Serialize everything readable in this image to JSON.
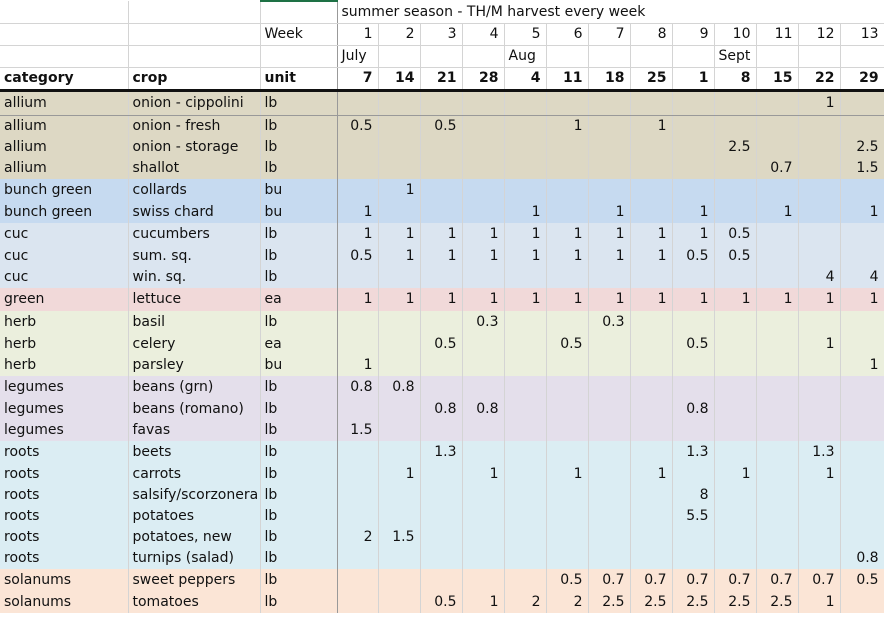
{
  "sheet": {
    "title": "summer season - TH/M harvest every week",
    "week_label": "Week",
    "weeks": [
      "1",
      "2",
      "3",
      "4",
      "5",
      "6",
      "7",
      "8",
      "9",
      "10",
      "11",
      "12",
      "13"
    ],
    "months": [
      "July",
      "",
      "",
      "",
      "Aug",
      "",
      "",
      "",
      "",
      "Sept",
      "",
      "",
      ""
    ],
    "days": [
      "7",
      "14",
      "21",
      "28",
      "4",
      "11",
      "18",
      "25",
      "1",
      "8",
      "15",
      "22",
      "29"
    ],
    "headers": {
      "category": "category",
      "crop": "crop",
      "unit": "unit"
    }
  },
  "group_colors": {
    "allium": "#ddd8c4",
    "bunch green": "#c6daf0",
    "cuc": "#dbe5f0",
    "green": "#f1d9d9",
    "herb": "#ebefdd",
    "legumes": "#e4dfeb",
    "roots": "#dbedf3",
    "solanums": "#fbe5d6"
  },
  "rows": [
    {
      "category": "allium",
      "crop": "onion - cippolini",
      "unit": "lb",
      "values": [
        "",
        "",
        "",
        "",
        "",
        "",
        "",
        "",
        "",
        "",
        "",
        "1",
        ""
      ]
    },
    {
      "category": "allium",
      "crop": "onion - fresh",
      "unit": "lb",
      "values": [
        "0.5",
        "",
        "0.5",
        "",
        "",
        "1",
        "",
        "1",
        "",
        "",
        "",
        "",
        ""
      ]
    },
    {
      "category": "allium",
      "crop": "onion - storage",
      "unit": "lb",
      "values": [
        "",
        "",
        "",
        "",
        "",
        "",
        "",
        "",
        "",
        "2.5",
        "",
        "",
        "2.5"
      ]
    },
    {
      "category": "allium",
      "crop": "shallot",
      "unit": "lb",
      "values": [
        "",
        "",
        "",
        "",
        "",
        "",
        "",
        "",
        "",
        "",
        "0.7",
        "",
        "1.5"
      ]
    },
    {
      "category": "bunch green",
      "crop": "collards",
      "unit": "bu",
      "values": [
        "",
        "1",
        "",
        "",
        "",
        "",
        "",
        "",
        "",
        "",
        "",
        "",
        ""
      ]
    },
    {
      "category": "bunch green",
      "crop": "swiss chard",
      "unit": "bu",
      "values": [
        "1",
        "",
        "",
        "",
        "1",
        "",
        "1",
        "",
        "1",
        "",
        "1",
        "",
        "1"
      ]
    },
    {
      "category": "cuc",
      "crop": "cucumbers",
      "unit": "lb",
      "values": [
        "1",
        "1",
        "1",
        "1",
        "1",
        "1",
        "1",
        "1",
        "1",
        "0.5",
        "",
        "",
        ""
      ]
    },
    {
      "category": "cuc",
      "crop": "sum. sq.",
      "unit": "lb",
      "values": [
        "0.5",
        "1",
        "1",
        "1",
        "1",
        "1",
        "1",
        "1",
        "0.5",
        "0.5",
        "",
        "",
        ""
      ]
    },
    {
      "category": "cuc",
      "crop": "win. sq.",
      "unit": "lb",
      "values": [
        "",
        "",
        "",
        "",
        "",
        "",
        "",
        "",
        "",
        "",
        "",
        "4",
        "4"
      ]
    },
    {
      "category": "green",
      "crop": "lettuce",
      "unit": "ea",
      "values": [
        "1",
        "1",
        "1",
        "1",
        "1",
        "1",
        "1",
        "1",
        "1",
        "1",
        "1",
        "1",
        "1"
      ]
    },
    {
      "category": "herb",
      "crop": "basil",
      "unit": "lb",
      "values": [
        "",
        "",
        "",
        "0.3",
        "",
        "",
        "0.3",
        "",
        "",
        "",
        "",
        "",
        ""
      ]
    },
    {
      "category": "herb",
      "crop": "celery",
      "unit": "ea",
      "values": [
        "",
        "",
        "0.5",
        "",
        "",
        "0.5",
        "",
        "",
        "0.5",
        "",
        "",
        "1",
        ""
      ]
    },
    {
      "category": "herb",
      "crop": "parsley",
      "unit": "bu",
      "values": [
        "1",
        "",
        "",
        "",
        "",
        "",
        "",
        "",
        "",
        "",
        "",
        "",
        "1"
      ]
    },
    {
      "category": "legumes",
      "crop": "beans (grn)",
      "unit": "lb",
      "values": [
        "0.8",
        "0.8",
        "",
        "",
        "",
        "",
        "",
        "",
        "",
        "",
        "",
        "",
        ""
      ]
    },
    {
      "category": "legumes",
      "crop": "beans (romano)",
      "unit": "lb",
      "values": [
        "",
        "",
        "0.8",
        "0.8",
        "",
        "",
        "",
        "",
        "0.8",
        "",
        "",
        "",
        ""
      ]
    },
    {
      "category": "legumes",
      "crop": "favas",
      "unit": "lb",
      "values": [
        "1.5",
        "",
        "",
        "",
        "",
        "",
        "",
        "",
        "",
        "",
        "",
        "",
        ""
      ]
    },
    {
      "category": "roots",
      "crop": "beets",
      "unit": "lb",
      "values": [
        "",
        "",
        "1.3",
        "",
        "",
        "",
        "",
        "",
        "1.3",
        "",
        "",
        "1.3",
        ""
      ]
    },
    {
      "category": "roots",
      "crop": "carrots",
      "unit": "lb",
      "values": [
        "",
        "1",
        "",
        "1",
        "",
        "1",
        "",
        "1",
        "",
        "1",
        "",
        "1",
        ""
      ]
    },
    {
      "category": "roots",
      "crop": "salsify/scorzonera",
      "unit": "lb",
      "values": [
        "",
        "",
        "",
        "",
        "",
        "",
        "",
        "",
        "8",
        "",
        "",
        "",
        ""
      ]
    },
    {
      "category": "roots",
      "crop": "potatoes",
      "unit": "lb",
      "values": [
        "",
        "",
        "",
        "",
        "",
        "",
        "",
        "",
        "5.5",
        "",
        "",
        "",
        ""
      ]
    },
    {
      "category": "roots",
      "crop": "potatoes, new",
      "unit": "lb",
      "values": [
        "2",
        "1.5",
        "",
        "",
        "",
        "",
        "",
        "",
        "",
        "",
        "",
        "",
        ""
      ]
    },
    {
      "category": "roots",
      "crop": "turnips (salad)",
      "unit": "lb",
      "values": [
        "",
        "",
        "",
        "",
        "",
        "",
        "",
        "",
        "",
        "",
        "",
        "",
        "0.8"
      ]
    },
    {
      "category": "solanums",
      "crop": "sweet peppers",
      "unit": "lb",
      "values": [
        "",
        "",
        "",
        "",
        "",
        "0.5",
        "0.7",
        "0.7",
        "0.7",
        "0.7",
        "0.7",
        "0.7",
        "0.5"
      ]
    },
    {
      "category": "solanums",
      "crop": "tomatoes",
      "unit": "lb",
      "values": [
        "",
        "",
        "0.5",
        "1",
        "2",
        "2",
        "2.5",
        "2.5",
        "2.5",
        "2.5",
        "2.5",
        "1",
        ""
      ]
    }
  ]
}
